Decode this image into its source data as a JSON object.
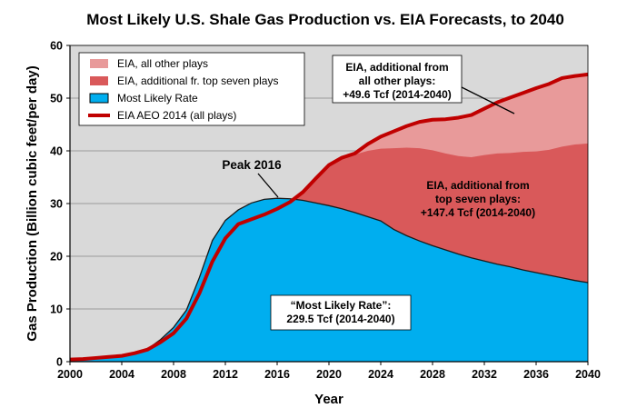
{
  "chart_data": {
    "type": "area",
    "title": "Most Likely U.S. Shale Gas Production vs. EIA Forecasts, to 2040",
    "xlabel": "Year",
    "ylabel": "Gas Production (Billion cubic feet/per day)",
    "xlim": [
      2000,
      2040
    ],
    "ylim": [
      0,
      60
    ],
    "x_ticks": [
      "2000",
      "2004",
      "2008",
      "2012",
      "2016",
      "2020",
      "2024",
      "2028",
      "2032",
      "2036",
      "2040"
    ],
    "y_ticks": [
      "0",
      "10",
      "20",
      "30",
      "40",
      "50",
      "60"
    ],
    "grid": true,
    "legend_position": "top-left",
    "x": [
      2000,
      2001,
      2002,
      2003,
      2004,
      2005,
      2006,
      2007,
      2008,
      2009,
      2010,
      2011,
      2012,
      2013,
      2014,
      2015,
      2016,
      2017,
      2018,
      2019,
      2020,
      2021,
      2022,
      2023,
      2024,
      2025,
      2026,
      2027,
      2028,
      2029,
      2030,
      2031,
      2032,
      2033,
      2034,
      2035,
      2036,
      2037,
      2038,
      2039,
      2040
    ],
    "series": [
      {
        "name": "EIA, all other plays",
        "color": "#e89a9a",
        "values": [
          0.4,
          0.5,
          0.7,
          0.9,
          1.1,
          1.6,
          2.3,
          3.7,
          5.4,
          8.2,
          13.0,
          19.0,
          23.4,
          26.1,
          27.0,
          27.9,
          29.0,
          30.3,
          32.2,
          34.8,
          37.3,
          38.7,
          39.5,
          41.3,
          42.7,
          43.7,
          44.7,
          45.5,
          45.9,
          46.0,
          46.3,
          46.8,
          48.0,
          49.2,
          50.1,
          51.0,
          51.9,
          52.7,
          53.8,
          54.2,
          54.5
        ]
      },
      {
        "name": "EIA, additional fr. top seven plays",
        "color": "#d9595a",
        "values": [
          0.4,
          0.5,
          0.7,
          0.9,
          1.1,
          1.6,
          2.3,
          3.7,
          5.4,
          8.2,
          13.0,
          19.0,
          23.4,
          26.1,
          27.0,
          27.9,
          29.0,
          30.3,
          32.2,
          34.8,
          37.3,
          38.7,
          39.3,
          40.0,
          40.4,
          40.5,
          40.6,
          40.5,
          40.1,
          39.5,
          39.0,
          38.8,
          39.2,
          39.5,
          39.6,
          39.8,
          39.9,
          40.2,
          40.8,
          41.2,
          41.4
        ]
      },
      {
        "name": "Most Likely Rate",
        "color": "#00aeef",
        "values": [
          0.4,
          0.5,
          0.7,
          0.9,
          1.1,
          1.6,
          2.4,
          4.2,
          6.5,
          9.8,
          16.0,
          23.0,
          26.8,
          28.8,
          30.1,
          30.8,
          31.0,
          30.9,
          30.6,
          30.1,
          29.6,
          29.0,
          28.3,
          27.5,
          26.7,
          25.1,
          23.9,
          22.9,
          22.0,
          21.2,
          20.4,
          19.7,
          19.1,
          18.5,
          18.0,
          17.4,
          16.9,
          16.4,
          15.9,
          15.4,
          15.0
        ]
      },
      {
        "name": "EIA AEO 2014 (all plays)",
        "color": "#c00000",
        "values": [
          0.4,
          0.5,
          0.7,
          0.9,
          1.1,
          1.6,
          2.3,
          3.7,
          5.4,
          8.2,
          13.0,
          19.0,
          23.4,
          26.1,
          27.0,
          27.9,
          29.0,
          30.3,
          32.2,
          34.8,
          37.3,
          38.7,
          39.5,
          41.3,
          42.7,
          43.7,
          44.7,
          45.5,
          45.9,
          46.0,
          46.3,
          46.8,
          48.0,
          49.2,
          50.1,
          51.0,
          51.9,
          52.7,
          53.8,
          54.2,
          54.5
        ]
      }
    ],
    "annotations": [
      {
        "lines": [
          "EIA, additional from",
          "all other plays:",
          "+49.6 Tcf  (2014-2040)"
        ]
      },
      {
        "lines": [
          "EIA, additional from",
          "top seven plays:",
          "+147.4 Tcf  (2014-2040)"
        ]
      },
      {
        "lines": [
          "“Most Likely Rate”:",
          "229.5 Tcf (2014-2040)"
        ]
      },
      {
        "lines": [
          "Peak 2016"
        ]
      }
    ]
  }
}
